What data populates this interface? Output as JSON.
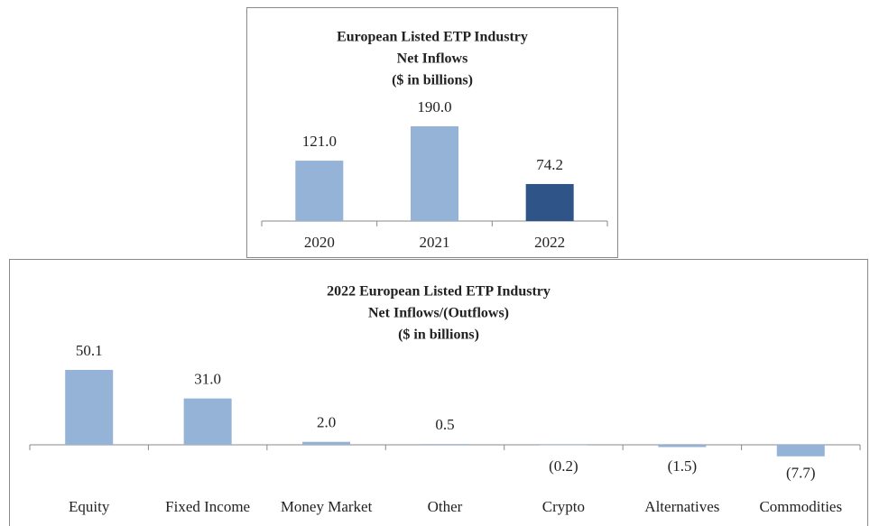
{
  "chart_data": [
    {
      "type": "bar",
      "title": "European Listed ETP Industry",
      "subtitle": "Net Inflows",
      "units": "($ in billions)",
      "categories": [
        "2020",
        "2021",
        "2022"
      ],
      "values": [
        121.0,
        190.0,
        74.2
      ],
      "value_labels": [
        "121.0",
        "190.0",
        "74.2"
      ],
      "colors": [
        "#95b3d7",
        "#95b3d7",
        "#2f5487"
      ],
      "ylim": [
        0,
        200
      ]
    },
    {
      "type": "bar",
      "title": "2022 European Listed ETP Industry",
      "subtitle": "Net Inflows/(Outflows)",
      "units": "($ in billions)",
      "categories": [
        "Equity",
        "Fixed Income",
        "Money Market",
        "Other",
        "Crypto",
        "Alternatives",
        "Commodities"
      ],
      "values": [
        50.1,
        31.0,
        2.0,
        0.5,
        -0.2,
        -1.5,
        -7.7
      ],
      "value_labels": [
        "50.1",
        "31.0",
        "2.0",
        "0.5",
        "(0.2)",
        "(1.5)",
        "(7.7)"
      ],
      "colors": [
        "#95b3d7",
        "#95b3d7",
        "#95b3d7",
        "#95b3d7",
        "#95b3d7",
        "#95b3d7",
        "#95b3d7"
      ],
      "ylim": [
        -10,
        60
      ]
    }
  ]
}
